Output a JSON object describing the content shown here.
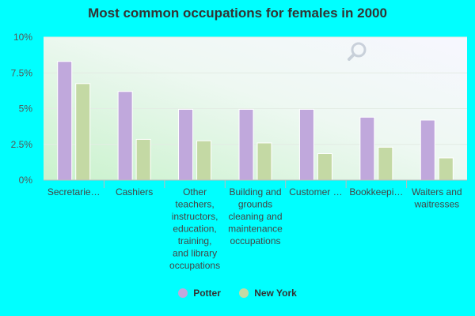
{
  "chart_data": {
    "type": "bar",
    "title": "Most common occupations for females in 2000",
    "categories": [
      "Secretarie…",
      "Cashiers",
      "Other teachers, instructors, education, training, and library occupations",
      "Building and grounds cleaning and maintenance occupations",
      "Customer …",
      "Bookkeepi…",
      "Waiters and waitresses"
    ],
    "series": [
      {
        "name": "Potter",
        "color": "#c0a8dc",
        "values": [
          8.3,
          6.2,
          4.95,
          4.95,
          4.95,
          4.4,
          4.2
        ]
      },
      {
        "name": "New York",
        "color": "#c4d9a4",
        "values": [
          6.75,
          2.85,
          2.75,
          2.6,
          1.85,
          2.3,
          1.55
        ]
      }
    ],
    "ylim": [
      0,
      10
    ],
    "yticks": [
      "0%",
      "2.5%",
      "5%",
      "7.5%",
      "10%"
    ],
    "ytick_values": [
      0,
      2.5,
      5,
      7.5,
      10
    ],
    "grid": true,
    "legend_position": "bottom"
  }
}
